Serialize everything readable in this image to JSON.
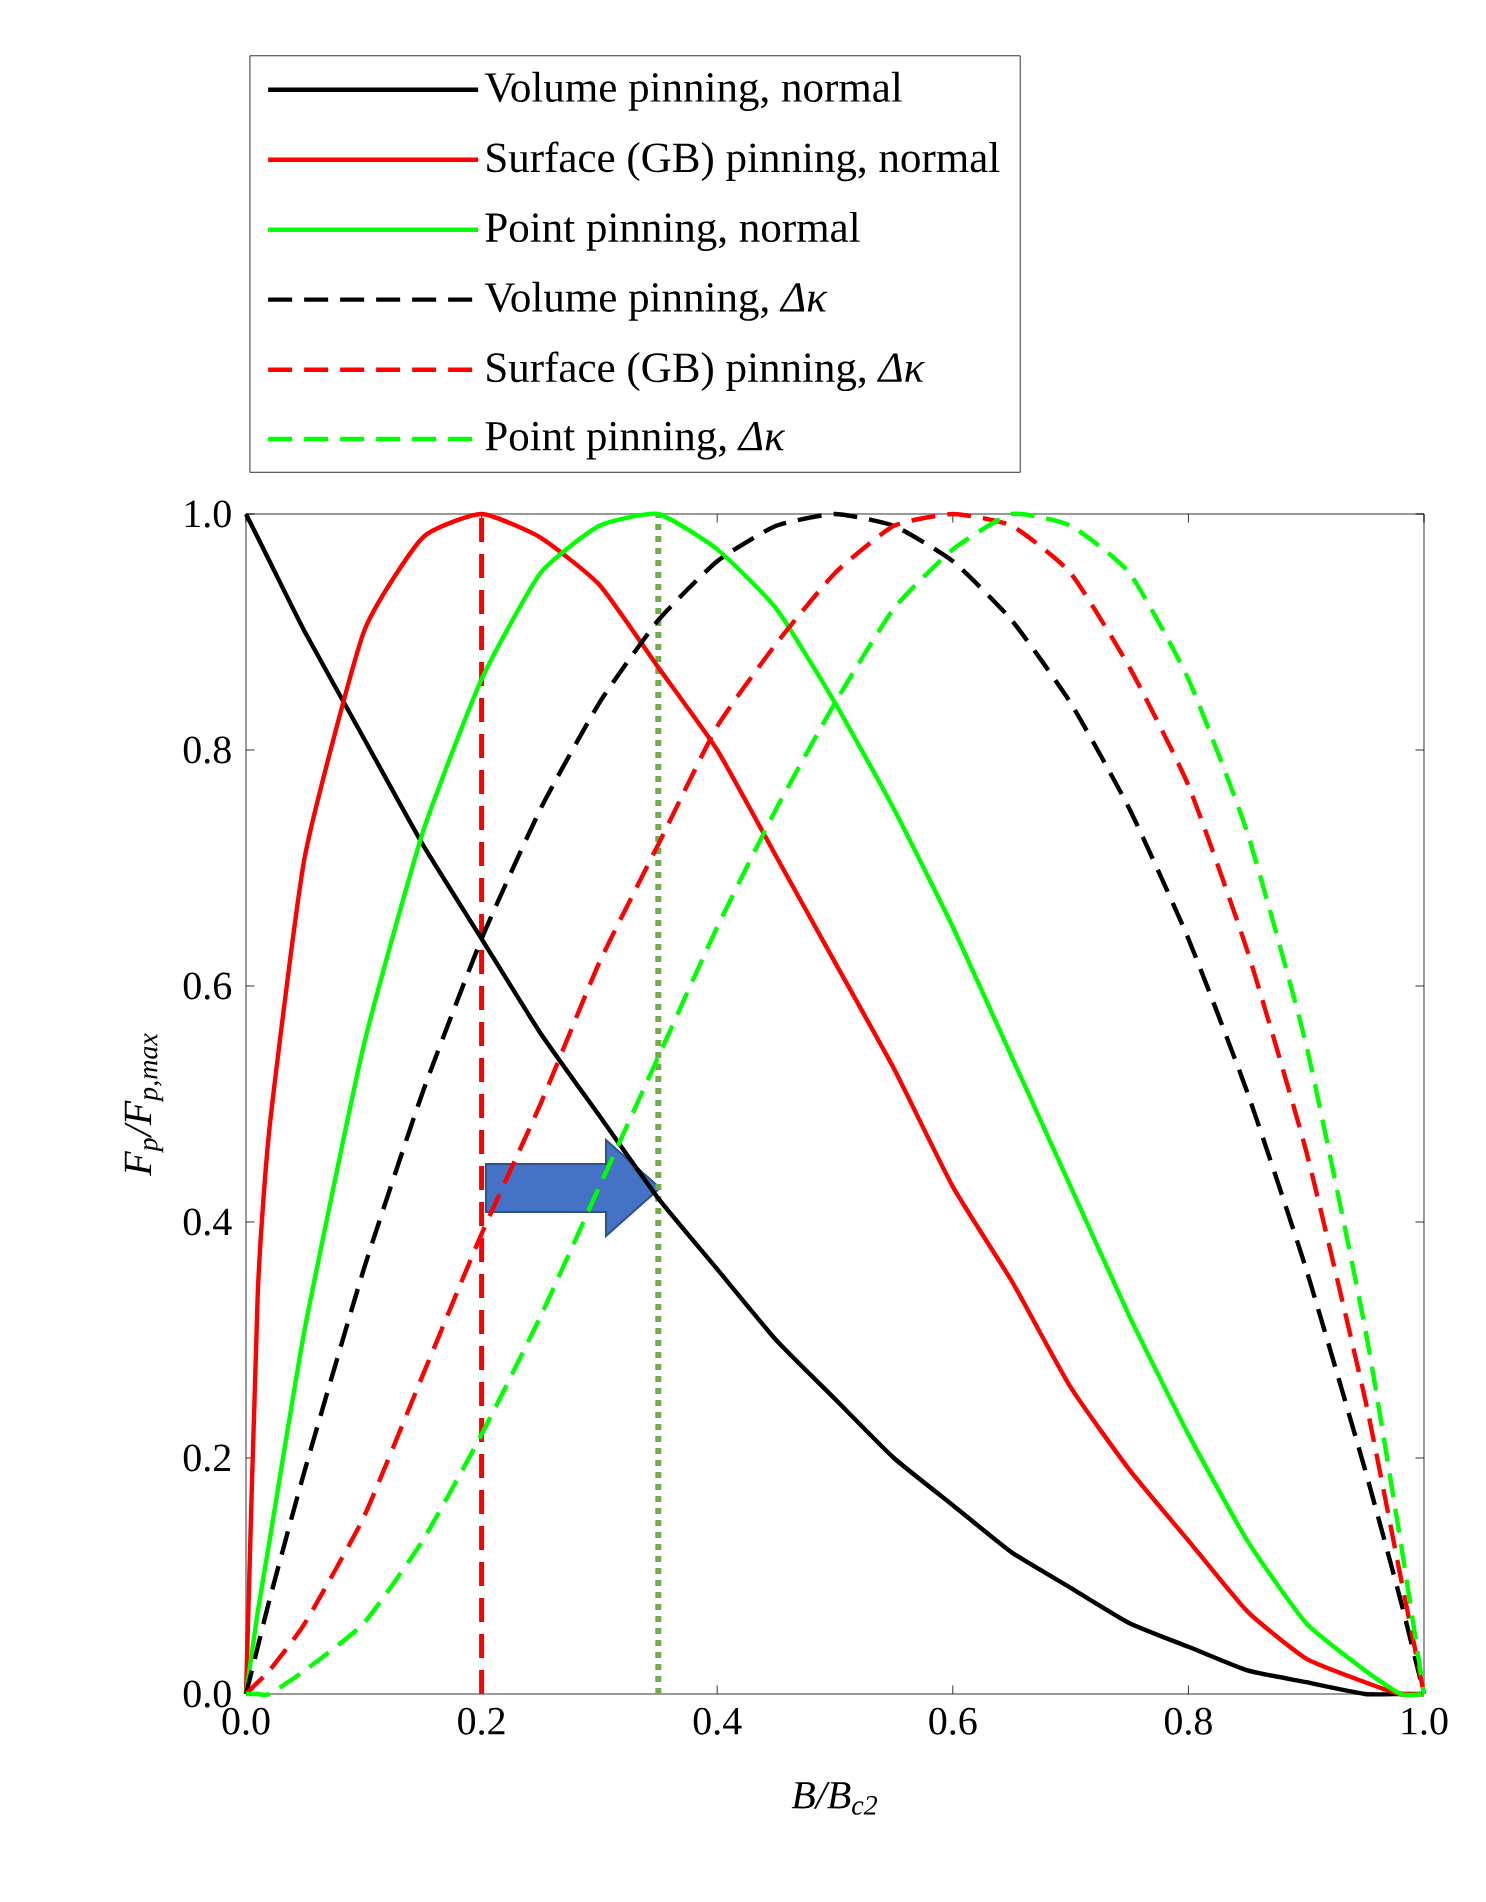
{
  "chart_data": {
    "type": "line",
    "xlabel": "B/B$_{c2}$",
    "ylabel": "F$_{p}$/F$_{p,max}$",
    "x": [
      0,
      0.01,
      0.02,
      0.05,
      0.1,
      0.15,
      0.2,
      0.25,
      0.3,
      0.35,
      0.4,
      0.45,
      0.5,
      0.55,
      0.6,
      0.65,
      0.7,
      0.75,
      0.8,
      0.85,
      0.9,
      0.95,
      0.98,
      1.0
    ],
    "series": [
      {
        "name": "Volume pinning, normal",
        "color": "#000000",
        "line_style": "solid",
        "values": [
          1,
          0.98,
          0.96,
          0.9,
          0.81,
          0.72,
          0.64,
          0.56,
          0.49,
          0.42,
          0.36,
          0.3,
          0.25,
          0.2,
          0.16,
          0.12,
          0.09,
          0.06,
          0.04,
          0.02,
          0.01,
          0,
          0,
          0
        ]
      },
      {
        "name": "Surface (GB) pinning, normal",
        "color": "#ff0000",
        "line_style": "solid",
        "values": [
          0,
          0.34,
          0.48,
          0.71,
          0.9,
          0.98,
          1,
          0.98,
          0.94,
          0.87,
          0.8,
          0.71,
          0.62,
          0.53,
          0.43,
          0.35,
          0.26,
          0.19,
          0.13,
          0.07,
          0.03,
          0.01,
          0,
          0
        ]
      },
      {
        "name": "Point pinning, normal",
        "color": "#00ff00",
        "line_style": "solid",
        "values": [
          0,
          0.07,
          0.13,
          0.31,
          0.55,
          0.73,
          0.86,
          0.95,
          0.99,
          1,
          0.97,
          0.92,
          0.84,
          0.75,
          0.65,
          0.54,
          0.43,
          0.32,
          0.22,
          0.13,
          0.06,
          0.02,
          0,
          0
        ]
      },
      {
        "name": "Volume pinning, *Δκ*",
        "color": "#000000",
        "line_style": "dashed",
        "values": [
          0,
          0.04,
          0.08,
          0.19,
          0.36,
          0.51,
          0.64,
          0.75,
          0.84,
          0.91,
          0.96,
          0.99,
          1,
          0.99,
          0.96,
          0.91,
          0.84,
          0.75,
          0.64,
          0.51,
          0.36,
          0.19,
          0.08,
          0
        ]
      },
      {
        "name": "Surface (GB) pinning, *Δκ*",
        "color": "#ff0000",
        "line_style": "dashed",
        "values": [
          0,
          0.01,
          0.02,
          0.06,
          0.15,
          0.27,
          0.39,
          0.5,
          0.62,
          0.72,
          0.82,
          0.89,
          0.95,
          0.99,
          1,
          0.99,
          0.95,
          0.87,
          0.77,
          0.63,
          0.46,
          0.25,
          0.1,
          0
        ]
      },
      {
        "name": "Point pinning, *Δκ*",
        "color": "#00ff00",
        "line_style": "dashed",
        "values": [
          0,
          0,
          0,
          0.02,
          0.06,
          0.13,
          0.22,
          0.32,
          0.43,
          0.54,
          0.65,
          0.75,
          0.84,
          0.92,
          0.97,
          1,
          0.99,
          0.95,
          0.86,
          0.73,
          0.55,
          0.31,
          0.13,
          0
        ]
      }
    ],
    "xlim": [
      0,
      1
    ],
    "ylim": [
      0,
      1
    ],
    "xticks": [
      {
        "value": 0,
        "label": "0.0"
      },
      {
        "value": 0.2,
        "label": "0.2"
      },
      {
        "value": 0.4,
        "label": "0.4"
      },
      {
        "value": 0.6,
        "label": "0.6"
      },
      {
        "value": 0.8,
        "label": "0.8"
      },
      {
        "value": 1,
        "label": "1.0"
      }
    ],
    "yticks": [
      {
        "value": 0,
        "label": "0.0"
      },
      {
        "value": 0.2,
        "label": "0.2"
      },
      {
        "value": 0.4,
        "label": "0.4"
      },
      {
        "value": 0.6,
        "label": "0.6"
      },
      {
        "value": 0.8,
        "label": "0.8"
      },
      {
        "value": 1,
        "label": "1.0"
      }
    ],
    "ref_lines": [
      {
        "axis": "x",
        "value": 0.2,
        "color": "#ff0000",
        "line_style": "dashed"
      },
      {
        "axis": "x",
        "value": 0.35,
        "color": "#70ad47",
        "line_style": "dotted"
      }
    ],
    "grid": false,
    "legend": "top"
  }
}
